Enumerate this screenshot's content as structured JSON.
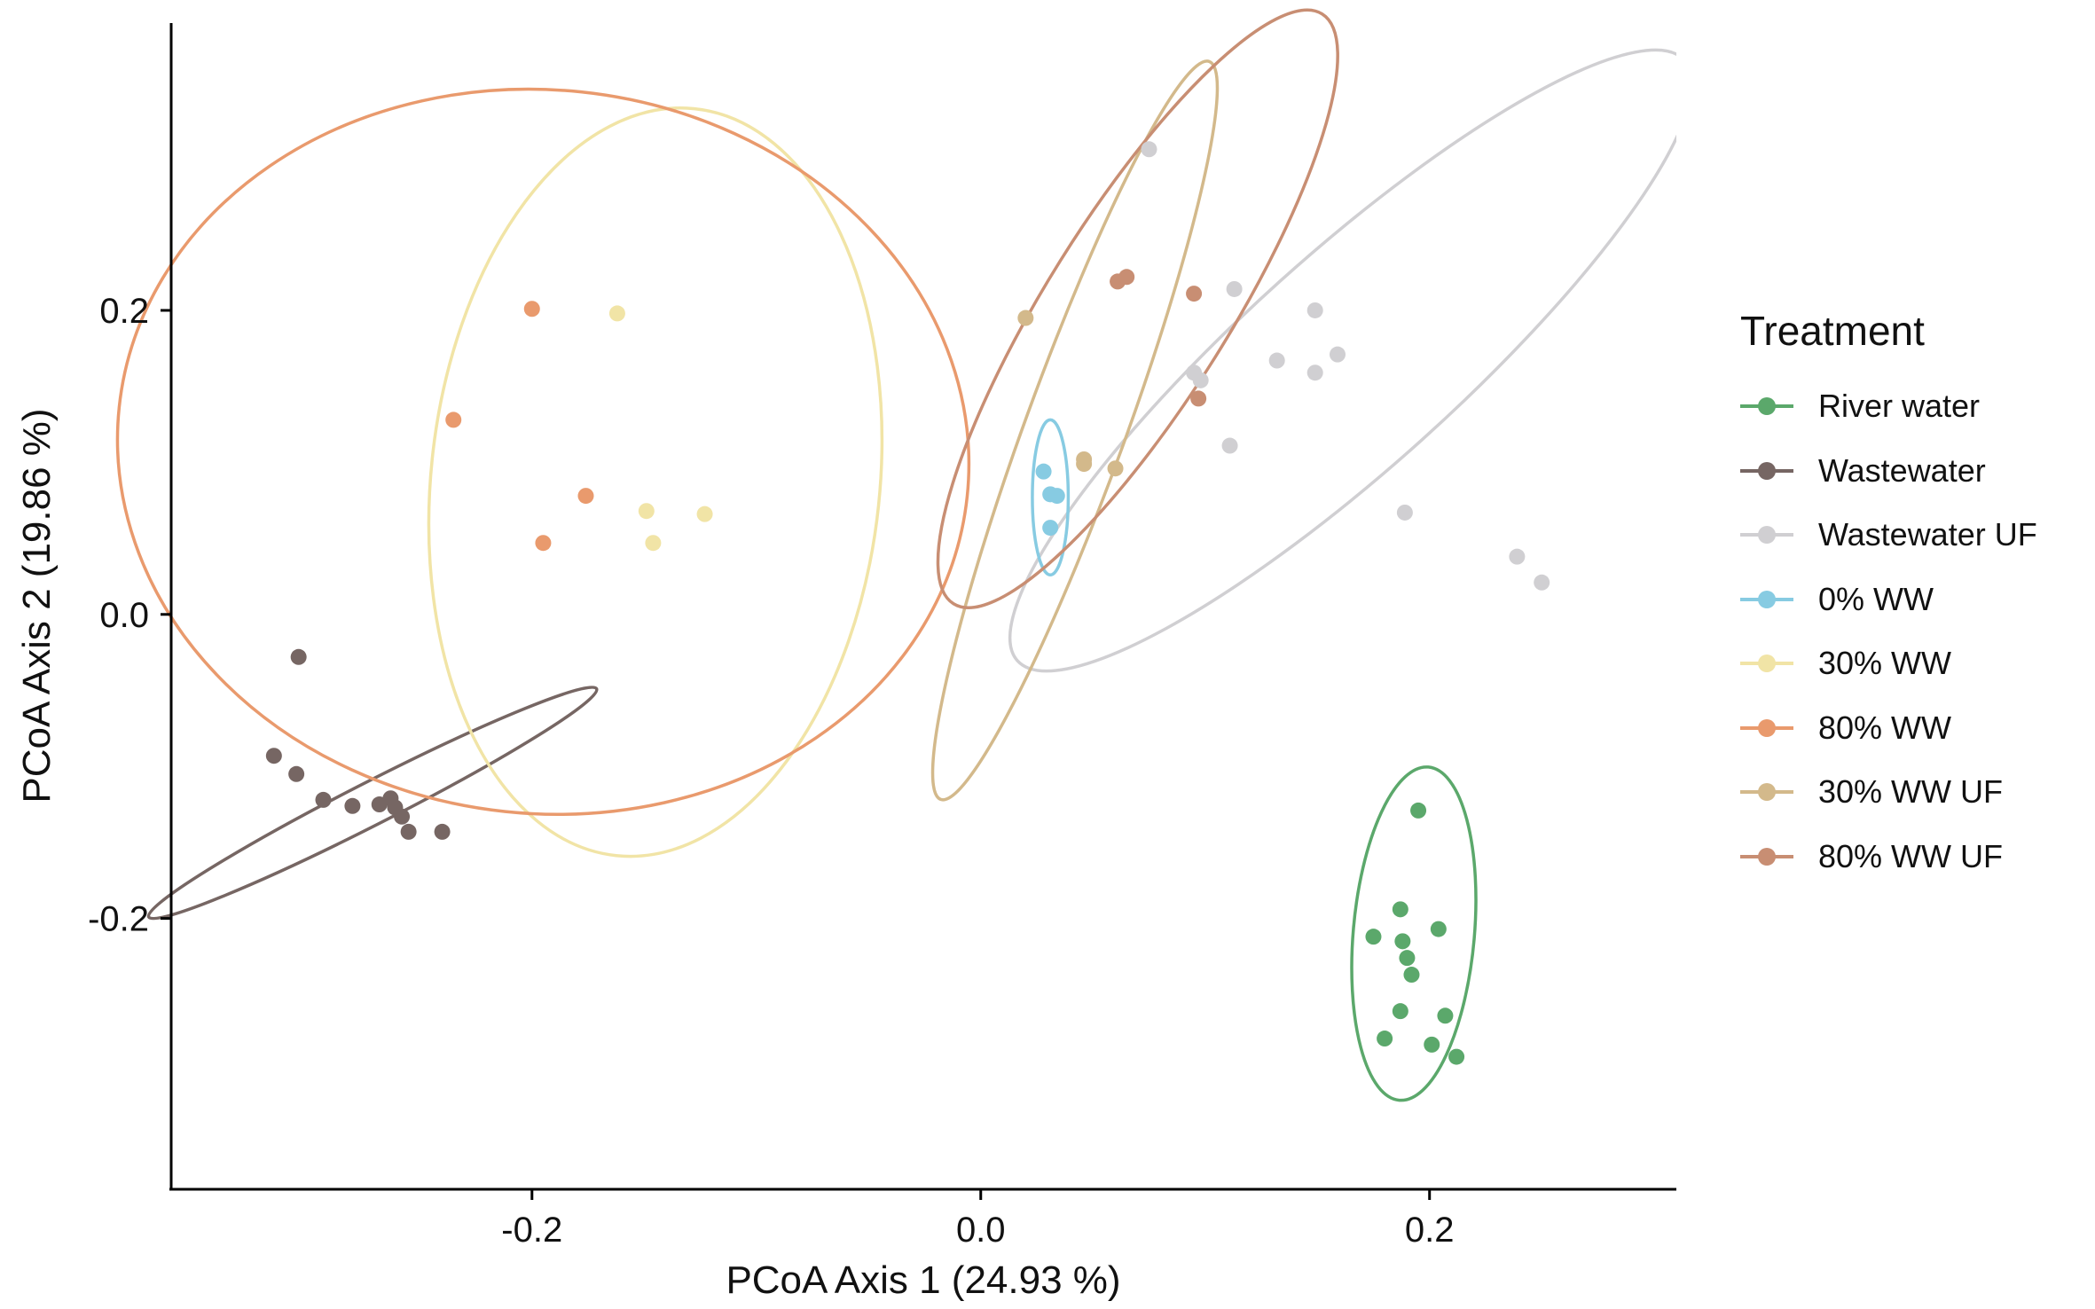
{
  "chart_data": {
    "type": "scatter",
    "title": "",
    "xlabel": "PCoA Axis 1 (24.93 %)",
    "ylabel": "PCoA Axis 2 (19.86 %)",
    "xlim": [
      -0.36,
      0.31
    ],
    "ylim": [
      -0.377,
      0.389
    ],
    "x_ticks": [
      -0.2,
      0.0,
      0.2
    ],
    "x_tick_labels": [
      "-0.2",
      "0.0",
      "0.2"
    ],
    "y_ticks": [
      -0.2,
      0.0,
      0.2
    ],
    "y_tick_labels": [
      "-0.2",
      "0.0",
      "0.2"
    ],
    "grid": false,
    "legend_title": "Treatment",
    "legend_position": "right",
    "ellipses": true,
    "series": [
      {
        "name": "River water",
        "color": "#5ba86b",
        "points": [
          [
            0.195,
            -0.129
          ],
          [
            0.187,
            -0.194
          ],
          [
            0.175,
            -0.212
          ],
          [
            0.188,
            -0.215
          ],
          [
            0.204,
            -0.207
          ],
          [
            0.19,
            -0.226
          ],
          [
            0.192,
            -0.237
          ],
          [
            0.187,
            -0.261
          ],
          [
            0.207,
            -0.264
          ],
          [
            0.18,
            -0.279
          ],
          [
            0.201,
            -0.283
          ],
          [
            0.212,
            -0.291
          ]
        ],
        "ellipse": {
          "cx": 0.193,
          "cy": -0.21,
          "rx": 0.027,
          "ry": 0.11,
          "rotate_deg": -5
        }
      },
      {
        "name": "Wastewater",
        "color": "#766663",
        "points": [
          [
            -0.304,
            -0.028
          ],
          [
            -0.315,
            -0.093
          ],
          [
            -0.305,
            -0.105
          ],
          [
            -0.293,
            -0.122
          ],
          [
            -0.28,
            -0.126
          ],
          [
            -0.268,
            -0.125
          ],
          [
            -0.263,
            -0.121
          ],
          [
            -0.261,
            -0.127
          ],
          [
            -0.258,
            -0.133
          ],
          [
            -0.255,
            -0.143
          ],
          [
            -0.24,
            -0.143
          ]
        ],
        "ellipse": {
          "cx": -0.271,
          "cy": -0.124,
          "rx": 0.112,
          "ry": 0.014,
          "rotate_deg": 27
        }
      },
      {
        "name": "Wastewater UF",
        "color": "#d0cfd2",
        "points": [
          [
            0.075,
            0.306
          ],
          [
            0.113,
            0.214
          ],
          [
            0.149,
            0.2
          ],
          [
            0.159,
            0.171
          ],
          [
            0.132,
            0.167
          ],
          [
            0.149,
            0.159
          ],
          [
            0.095,
            0.159
          ],
          [
            0.098,
            0.154
          ],
          [
            0.111,
            0.111
          ],
          [
            0.189,
            0.067
          ],
          [
            0.239,
            0.038
          ],
          [
            0.25,
            0.021
          ]
        ],
        "ellipse": {
          "cx": 0.165,
          "cy": 0.167,
          "rx": 0.2,
          "ry": 0.07,
          "rotate_deg": 42
        }
      },
      {
        "name": "0% WW",
        "color": "#87cbe2",
        "points": [
          [
            0.028,
            0.094
          ],
          [
            0.031,
            0.079
          ],
          [
            0.034,
            0.078
          ],
          [
            0.031,
            0.057
          ]
        ],
        "ellipse": {
          "cx": 0.031,
          "cy": 0.077,
          "rx": 0.008,
          "ry": 0.051,
          "rotate_deg": 0
        }
      },
      {
        "name": "30% WW",
        "color": "#f1e4a6",
        "points": [
          [
            -0.162,
            0.198
          ],
          [
            -0.149,
            0.068
          ],
          [
            -0.123,
            0.066
          ],
          [
            -0.146,
            0.047
          ]
        ],
        "ellipse": {
          "cx": -0.145,
          "cy": 0.087,
          "rx": 0.1,
          "ry": 0.247,
          "rotate_deg": -6
        }
      },
      {
        "name": "80% WW",
        "color": "#e99a6d",
        "points": [
          [
            -0.2,
            0.201
          ],
          [
            -0.235,
            0.128
          ],
          [
            -0.176,
            0.078
          ],
          [
            -0.195,
            0.047
          ]
        ],
        "ellipse": {
          "cx": -0.195,
          "cy": 0.107,
          "rx": 0.19,
          "ry": 0.238,
          "rotate_deg": -6
        }
      },
      {
        "name": "30% WW UF",
        "color": "#d3b98b",
        "points": [
          [
            0.02,
            0.195
          ],
          [
            0.046,
            0.102
          ],
          [
            0.046,
            0.099
          ],
          [
            0.06,
            0.096
          ]
        ],
        "ellipse": {
          "cx": 0.042,
          "cy": 0.121,
          "rx": 0.175,
          "ry": 0.033,
          "rotate_deg": 70
        }
      },
      {
        "name": "80% WW UF",
        "color": "#c88e73",
        "points": [
          [
            0.061,
            0.219
          ],
          [
            0.065,
            0.222
          ],
          [
            0.095,
            0.211
          ],
          [
            0.097,
            0.142
          ]
        ],
        "ellipse": {
          "cx": 0.07,
          "cy": 0.201,
          "rx": 0.155,
          "ry": 0.06,
          "rotate_deg": 58
        }
      }
    ]
  }
}
